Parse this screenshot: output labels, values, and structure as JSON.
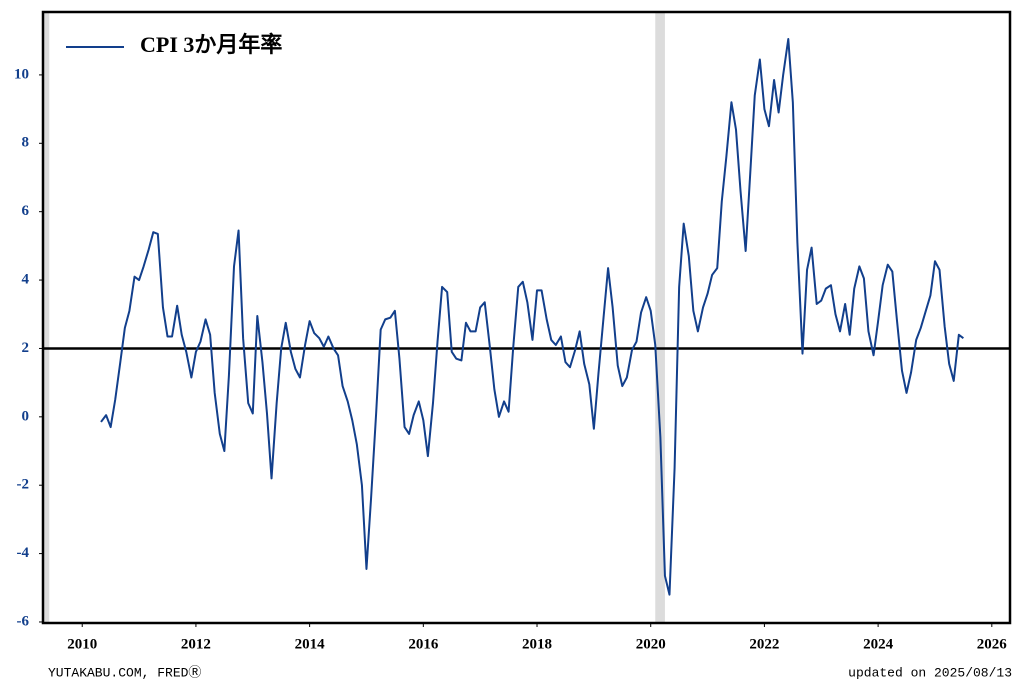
{
  "chart_data": {
    "type": "line",
    "series": [
      {
        "name": "CPI 3か月年率",
        "color": "#123f8c",
        "values": [
          -0.15,
          0.05,
          -0.3,
          0.5,
          1.6,
          2.6,
          3.1,
          4.1,
          4.0,
          4.4,
          4.9,
          5.4,
          5.35,
          3.2,
          2.35,
          2.35,
          3.25,
          2.4,
          1.9,
          1.15,
          1.9,
          2.2,
          2.85,
          2.4,
          0.7,
          -0.5,
          -1.0,
          1.2,
          4.4,
          5.45,
          2.3,
          0.4,
          0.1,
          2.95,
          1.6,
          0.1,
          -1.8,
          0.4,
          2.0,
          2.75,
          1.9,
          1.4,
          1.15,
          2.1,
          2.8,
          2.45,
          2.3,
          2.05,
          2.35,
          2.0,
          1.8,
          0.9,
          0.45,
          -0.1,
          -0.8,
          -2.0,
          -4.45,
          -2.4,
          0.1,
          2.55,
          2.85,
          2.9,
          3.1,
          1.7,
          -0.3,
          -0.5,
          0.05,
          0.45,
          -0.1,
          -1.15,
          0.4,
          2.2,
          3.8,
          3.65,
          1.9,
          1.7,
          1.65,
          2.75,
          2.5,
          2.5,
          3.2,
          3.35,
          2.05,
          0.8,
          0.0,
          0.45,
          0.15,
          2.0,
          3.8,
          3.95,
          3.35,
          2.25,
          3.7,
          3.7,
          2.85,
          2.25,
          2.1,
          2.35,
          1.6,
          1.45,
          1.95,
          2.5,
          1.55,
          0.95,
          -0.35,
          1.25,
          2.9,
          4.35,
          3.2,
          1.5,
          0.9,
          1.15,
          1.95,
          2.2,
          3.05,
          3.5,
          3.1,
          2.1,
          -0.6,
          -4.65,
          -5.2,
          -1.5,
          3.8,
          5.65,
          4.7,
          3.1,
          2.5,
          3.2,
          3.6,
          4.15,
          4.35,
          6.3,
          7.6,
          9.2,
          8.4,
          6.6,
          4.85,
          7.1,
          9.4,
          10.45,
          9.0,
          8.5,
          9.85,
          8.9,
          10.0,
          11.05,
          9.2,
          5.1,
          1.85,
          4.3,
          4.95,
          3.3,
          3.4,
          3.75,
          3.85,
          3.0,
          2.5,
          3.3,
          2.4,
          3.75,
          4.4,
          4.05,
          2.5,
          1.8,
          2.8,
          3.85,
          4.45,
          4.25,
          2.85,
          1.35,
          0.7,
          1.3,
          2.25,
          2.6,
          3.05,
          3.55,
          4.55,
          4.3,
          2.65,
          1.55,
          1.05,
          2.4,
          2.3
        ]
      }
    ],
    "x": [
      2010.33,
      2010.42,
      2010.5,
      2010.58,
      2010.67,
      2010.75,
      2010.83,
      2010.92,
      2011.0,
      2011.08,
      2011.17,
      2011.25,
      2011.33,
      2011.42,
      2011.5,
      2011.58,
      2011.67,
      2011.75,
      2011.83,
      2011.92,
      2012.0,
      2012.08,
      2012.17,
      2012.25,
      2012.33,
      2012.42,
      2012.5,
      2012.58,
      2012.67,
      2012.75,
      2012.83,
      2012.92,
      2013.0,
      2013.08,
      2013.17,
      2013.25,
      2013.33,
      2013.42,
      2013.5,
      2013.58,
      2013.67,
      2013.75,
      2013.83,
      2013.92,
      2014.0,
      2014.08,
      2014.17,
      2014.25,
      2014.33,
      2014.42,
      2014.5,
      2014.58,
      2014.67,
      2014.75,
      2014.83,
      2014.92,
      2015.0,
      2015.08,
      2015.17,
      2015.25,
      2015.33,
      2015.42,
      2015.5,
      2015.58,
      2015.67,
      2015.75,
      2015.83,
      2015.92,
      2016.0,
      2016.08,
      2016.17,
      2016.25,
      2016.33,
      2016.42,
      2016.5,
      2016.58,
      2016.67,
      2016.75,
      2016.83,
      2016.92,
      2017.0,
      2017.08,
      2017.17,
      2017.25,
      2017.33,
      2017.42,
      2017.5,
      2017.58,
      2017.67,
      2017.75,
      2017.83,
      2017.92,
      2018.0,
      2018.08,
      2018.17,
      2018.25,
      2018.33,
      2018.42,
      2018.5,
      2018.58,
      2018.67,
      2018.75,
      2018.83,
      2018.92,
      2019.0,
      2019.08,
      2019.17,
      2019.25,
      2019.33,
      2019.42,
      2019.5,
      2019.58,
      2019.67,
      2019.75,
      2019.83,
      2019.92,
      2020.0,
      2020.08,
      2020.17,
      2020.25,
      2020.33,
      2020.42,
      2020.5,
      2020.58,
      2020.67,
      2020.75,
      2020.83,
      2020.92,
      2021.0,
      2021.08,
      2021.17,
      2021.25,
      2021.33,
      2021.42,
      2021.5,
      2021.58,
      2021.67,
      2021.75,
      2021.83,
      2021.92,
      2022.0,
      2022.08,
      2022.17,
      2022.25,
      2022.33,
      2022.42,
      2022.5,
      2022.58,
      2022.67,
      2022.75,
      2022.83,
      2022.92,
      2023.0,
      2023.08,
      2023.17,
      2023.25,
      2023.33,
      2023.42,
      2023.5,
      2023.58,
      2023.67,
      2023.75,
      2023.83,
      2023.92,
      2024.0,
      2024.08,
      2024.17,
      2024.25,
      2024.33,
      2024.42,
      2024.5,
      2024.58,
      2024.67,
      2024.75,
      2024.83,
      2024.92,
      2025.0,
      2025.08,
      2025.17,
      2025.25,
      2025.33,
      2025.42,
      2025.5
    ],
    "xlim": [
      2009.31,
      2026.32
    ],
    "xticks": [
      2010,
      2012,
      2014,
      2016,
      2018,
      2020,
      2022,
      2024,
      2026
    ],
    "ylim": [
      -6.03,
      11.84
    ],
    "yticks": [
      -6,
      -4,
      -2,
      0,
      2,
      4,
      6,
      8,
      10
    ],
    "hline": 2,
    "recessions": [
      [
        2009.33,
        2009.42
      ],
      [
        2020.08,
        2020.25
      ]
    ],
    "legend": "upper left",
    "grid": false,
    "source": "YUTAKABU.COM, FREDⓇ",
    "updated": "updated on 2025/08/13"
  }
}
